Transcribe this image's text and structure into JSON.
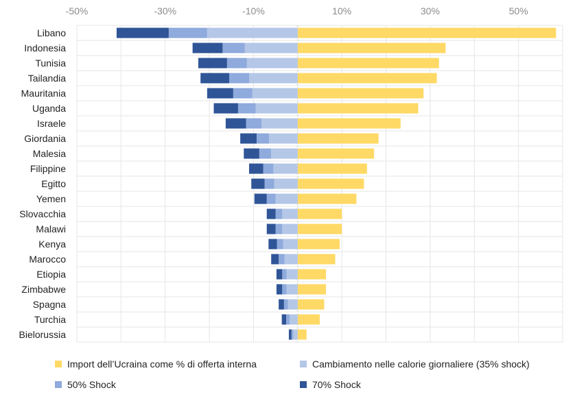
{
  "chart_data": {
    "type": "bar",
    "orientation": "horizontal",
    "stacked": true,
    "title": "",
    "xlabel": "",
    "ylabel": "",
    "xlim": [
      -50,
      60
    ],
    "x_ticks": [
      "-50%",
      "-30%",
      "-10%",
      "10%",
      "30%",
      "50%"
    ],
    "x_tick_values": [
      -50,
      -30,
      -10,
      10,
      30,
      50
    ],
    "grid": true,
    "legend_position": "bottom",
    "categories": [
      "Libano",
      "Indonesia",
      "Tunisia",
      "Tailandia",
      "Mauritania",
      "Uganda",
      "Israele",
      "Giordania",
      "Malesia",
      "Filippine",
      "Egitto",
      "Yemen",
      "Slovacchia",
      "Malawi",
      "Kenya",
      "Marocco",
      "Etiopia",
      "Zimbabwe",
      "Spagna",
      "Turchia",
      "Bielorussia"
    ],
    "series": [
      {
        "name": "Import dell'Ucraina come % di offerta interna",
        "color": "#FFD966",
        "values": [
          58.5,
          33.5,
          32,
          31.5,
          28.5,
          27.3,
          23.3,
          18.3,
          17.3,
          15.7,
          15,
          13.3,
          10,
          10,
          9.5,
          8.5,
          6.4,
          6.4,
          6,
          5,
          2
        ]
      },
      {
        "name": "Cambiamento nelle calorie giornaliere (35% shock)",
        "color": "#B4C7E7",
        "values": [
          -20.5,
          -12,
          -11.5,
          -11,
          -10.3,
          -9.5,
          -8.2,
          -6.5,
          -6,
          -5.5,
          -5.3,
          -5,
          -3.5,
          -3.5,
          -3.3,
          -3,
          -2.5,
          -2.5,
          -2.2,
          -1.8,
          -1
        ]
      },
      {
        "name": "50% Shock",
        "color": "#8FAADC",
        "values": [
          -8.7,
          -5,
          -4.5,
          -4.5,
          -4.3,
          -4,
          -3.5,
          -2.8,
          -2.7,
          -2.3,
          -2.2,
          -2,
          -1.5,
          -1.5,
          -1.4,
          -1.3,
          -1,
          -1,
          -0.9,
          -0.8,
          -0.4
        ]
      },
      {
        "name": "70% Shock",
        "color": "#2F5597",
        "values": [
          -11.8,
          -6.8,
          -6.5,
          -6.5,
          -5.9,
          -5.5,
          -4.6,
          -3.7,
          -3.5,
          -3.2,
          -3,
          -2.8,
          -2,
          -2,
          -1.9,
          -1.7,
          -1.3,
          -1.3,
          -1.2,
          -1,
          -0.6
        ]
      }
    ]
  },
  "legend": [
    {
      "label": "Import dell’Ucraina come % di offerta interna",
      "color": "#FFD966"
    },
    {
      "label": "Cambiamento nelle calorie giornaliere (35% shock)",
      "color": "#B4C7E7"
    },
    {
      "label": "50% Shock",
      "color": "#8FAADC"
    },
    {
      "label": "70% Shock",
      "color": "#2F5597"
    }
  ]
}
